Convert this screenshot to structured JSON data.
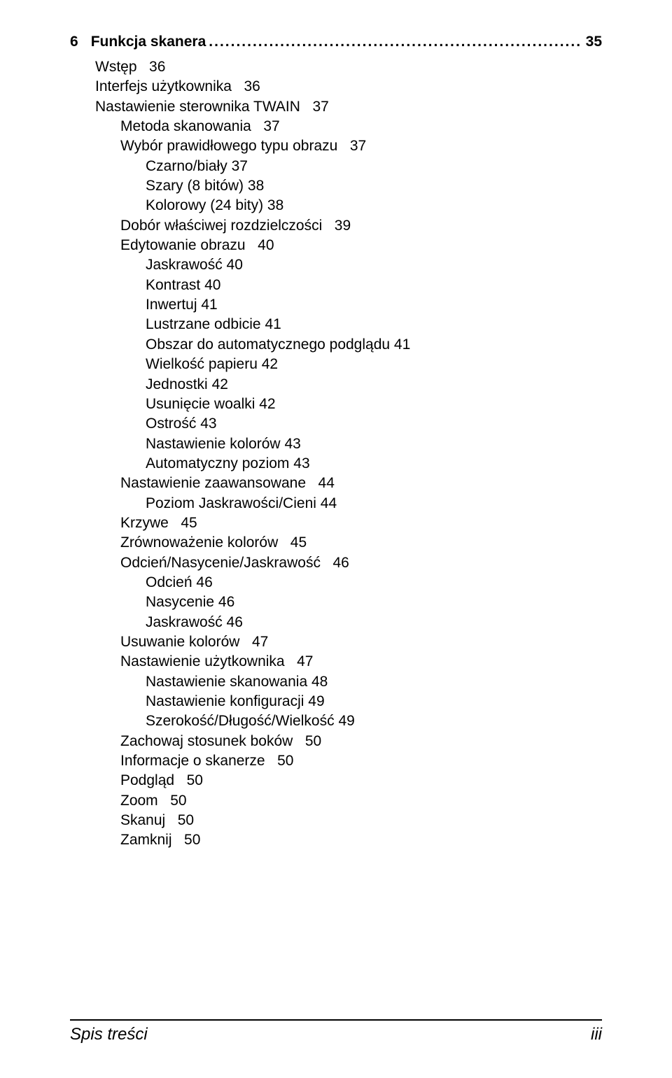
{
  "chapter": {
    "number": "6",
    "title": "Funkcja skanera",
    "dots": "..............................................................................................",
    "page": "35"
  },
  "toc": [
    {
      "level": 0,
      "title": "Wstęp",
      "page": "36"
    },
    {
      "level": 0,
      "title": "Interfejs użytkownika",
      "page": "36"
    },
    {
      "level": 0,
      "title": "Nastawienie sterownika TWAIN",
      "page": "37"
    },
    {
      "level": 1,
      "title": "Metoda skanowania",
      "page": "37"
    },
    {
      "level": 1,
      "title": "Wybór prawidłowego typu obrazu",
      "page": "37"
    },
    {
      "level": 2,
      "title": "Czarno/biały",
      "page": "37",
      "tight": true
    },
    {
      "level": 2,
      "title": "Szary (8 bitów)",
      "page": "38",
      "tight": true
    },
    {
      "level": 2,
      "title": "Kolorowy (24 bity)",
      "page": "38",
      "tight": true
    },
    {
      "level": 1,
      "title": "Dobór właściwej rozdzielczości",
      "page": "39"
    },
    {
      "level": 1,
      "title": "Edytowanie obrazu",
      "page": "40"
    },
    {
      "level": 2,
      "title": "Jaskrawość",
      "page": "40",
      "tight": true
    },
    {
      "level": 2,
      "title": "Kontrast",
      "page": "40",
      "tight": true
    },
    {
      "level": 2,
      "title": "Inwertuj",
      "page": "41",
      "tight": true
    },
    {
      "level": 2,
      "title": "Lustrzane odbicie",
      "page": "41",
      "tight": true
    },
    {
      "level": 2,
      "title": "Obszar do automatycznego podglądu",
      "page": "41",
      "tight": true
    },
    {
      "level": 2,
      "title": "Wielkość papieru",
      "page": "42",
      "tight": true
    },
    {
      "level": 2,
      "title": "Jednostki",
      "page": "42",
      "tight": true
    },
    {
      "level": 2,
      "title": "Usunięcie woalki",
      "page": "42",
      "tight": true
    },
    {
      "level": 2,
      "title": "Ostrość",
      "page": "43",
      "tight": true
    },
    {
      "level": 2,
      "title": "Nastawienie kolorów",
      "page": "43",
      "tight": true
    },
    {
      "level": 2,
      "title": "Automatyczny poziom",
      "page": "43",
      "tight": true
    },
    {
      "level": 1,
      "title": "Nastawienie zaawansowane",
      "page": "44"
    },
    {
      "level": 2,
      "title": "Poziom Jaskrawości/Cieni",
      "page": "44",
      "tight": true
    },
    {
      "level": 1,
      "title": "Krzywe",
      "page": "45"
    },
    {
      "level": 1,
      "title": "Zrównoważenie kolorów",
      "page": "45"
    },
    {
      "level": 1,
      "title": "Odcień/Nasycenie/Jaskrawość",
      "page": "46"
    },
    {
      "level": 2,
      "title": "Odcień",
      "page": "46",
      "tight": true
    },
    {
      "level": 2,
      "title": "Nasycenie",
      "page": "46",
      "tight": true
    },
    {
      "level": 2,
      "title": "Jaskrawość",
      "page": "46",
      "tight": true
    },
    {
      "level": 1,
      "title": "Usuwanie kolorów",
      "page": "47"
    },
    {
      "level": 1,
      "title": "Nastawienie użytkownika",
      "page": "47"
    },
    {
      "level": 2,
      "title": "Nastawienie skanowania",
      "page": "48",
      "tight": true
    },
    {
      "level": 2,
      "title": "Nastawienie konfiguracji",
      "page": "49",
      "tight": true
    },
    {
      "level": 2,
      "title": "Szerokość/Długość/Wielkość",
      "page": "49",
      "tight": true
    },
    {
      "level": 1,
      "title": "Zachowaj stosunek boków",
      "page": "50"
    },
    {
      "level": 1,
      "title": "Informacje o skanerze",
      "page": "50"
    },
    {
      "level": 1,
      "title": "Podgląd",
      "page": "50"
    },
    {
      "level": 1,
      "title": "Zoom",
      "page": "50"
    },
    {
      "level": 1,
      "title": "Skanuj",
      "page": "50"
    },
    {
      "level": 1,
      "title": "Zamknij",
      "page": "50"
    }
  ],
  "footer": {
    "left": "Spis treści",
    "right": "iii"
  }
}
